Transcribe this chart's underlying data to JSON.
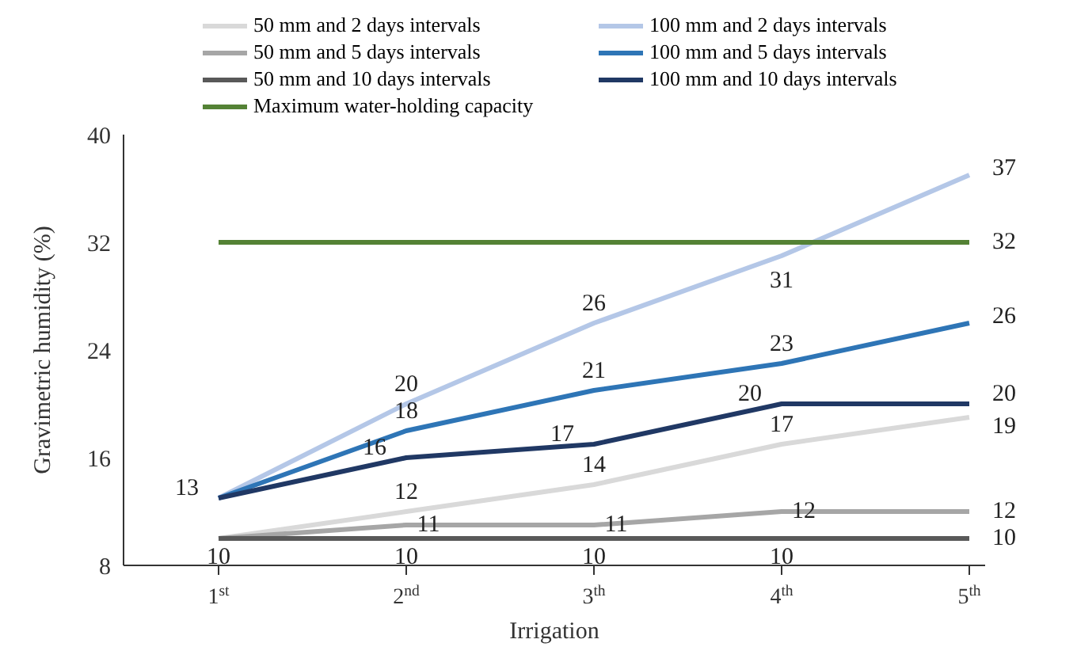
{
  "chart_data": {
    "type": "line",
    "xlabel": "Irrigation",
    "ylabel": "Gravimetric humidity (%)",
    "categories": [
      "1$^{st}$",
      "2$^{nd}$",
      "3$^{th}$",
      "4$^{th}$",
      "5$^{th}$"
    ],
    "ylim": [
      8,
      40
    ],
    "yticks": [
      8,
      16,
      24,
      32,
      40
    ],
    "legend": "top",
    "series": [
      {
        "name": "50 mm and 2 days intervals",
        "color": "#d9d9d9",
        "values": [
          10,
          12,
          14,
          17,
          19
        ],
        "value_labels": [
          null,
          "12",
          "14",
          "17",
          "19"
        ]
      },
      {
        "name": "100 mm and 2 days intervals",
        "color": "#b4c7e7",
        "values": [
          13,
          20,
          26,
          31,
          37
        ],
        "value_labels": [
          null,
          "20",
          "26",
          "31",
          "37"
        ]
      },
      {
        "name": "50 mm and 5 days intervals",
        "color": "#a6a6a6",
        "values": [
          10,
          11,
          11,
          12,
          12
        ],
        "value_labels": [
          null,
          "11",
          "11",
          "12",
          "12"
        ]
      },
      {
        "name": "100 mm and 5 days intervals",
        "color": "#2e75b6",
        "values": [
          13,
          18,
          21,
          23,
          26
        ],
        "value_labels": [
          null,
          "18",
          "21",
          "23",
          "26"
        ]
      },
      {
        "name": "50 mm and 10 days intervals",
        "color": "#595959",
        "values": [
          10,
          10,
          10,
          10,
          10
        ],
        "value_labels": [
          "10",
          "10",
          "10",
          "10",
          "10"
        ]
      },
      {
        "name": "100 mm and 10 days intervals",
        "color": "#203864",
        "values": [
          13,
          16,
          17,
          20,
          20
        ],
        "value_labels": [
          "13",
          "16",
          "17",
          "20",
          "20"
        ]
      },
      {
        "name": "Maximum water-holding capacity",
        "color": "#548235",
        "values": [
          32,
          32,
          32,
          32,
          32
        ],
        "value_labels": [
          null,
          null,
          null,
          null,
          "32"
        ]
      }
    ]
  }
}
